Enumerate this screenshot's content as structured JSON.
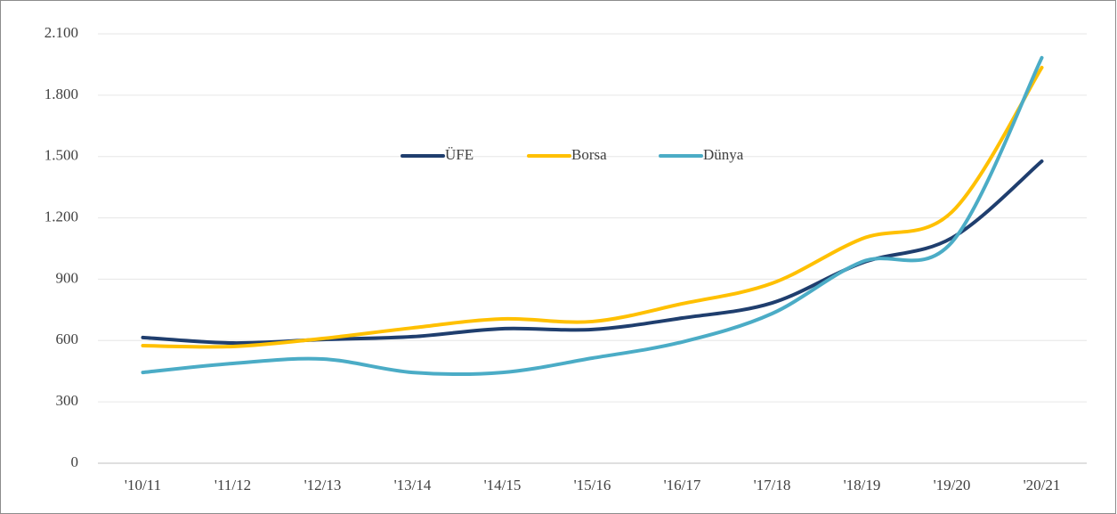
{
  "chart_data": {
    "type": "line",
    "categories": [
      "'10/11",
      "'11/12",
      "'12/13",
      "'13/14",
      "'14/15",
      "'15/16",
      "'16/17",
      "'17/18",
      "'18/19",
      "'19/20",
      "'20/21"
    ],
    "series": [
      {
        "name": "ÜFE",
        "color": "#1f3e6e",
        "values": [
          615,
          588,
          605,
          619,
          658,
          654,
          710,
          784,
          980,
          1102,
          1477
        ]
      },
      {
        "name": "Borsa",
        "color": "#ffc000",
        "values": [
          575,
          571,
          610,
          662,
          706,
          693,
          780,
          880,
          1098,
          1229,
          1935
        ]
      },
      {
        "name": "Dünya",
        "color": "#4bacc6",
        "values": [
          444,
          488,
          510,
          444,
          444,
          514,
          593,
          732,
          985,
          1081,
          1983
        ]
      }
    ],
    "ylim": [
      0,
      2100
    ],
    "yticks": [
      0,
      300,
      600,
      900,
      {
        "value": 1200,
        "label": "1.200"
      },
      {
        "value": 1500,
        "label": "1.500"
      },
      {
        "value": 1800,
        "label": "1.800"
      },
      {
        "value": 2100,
        "label": "2.100"
      }
    ],
    "grid": true,
    "legend": "top"
  }
}
